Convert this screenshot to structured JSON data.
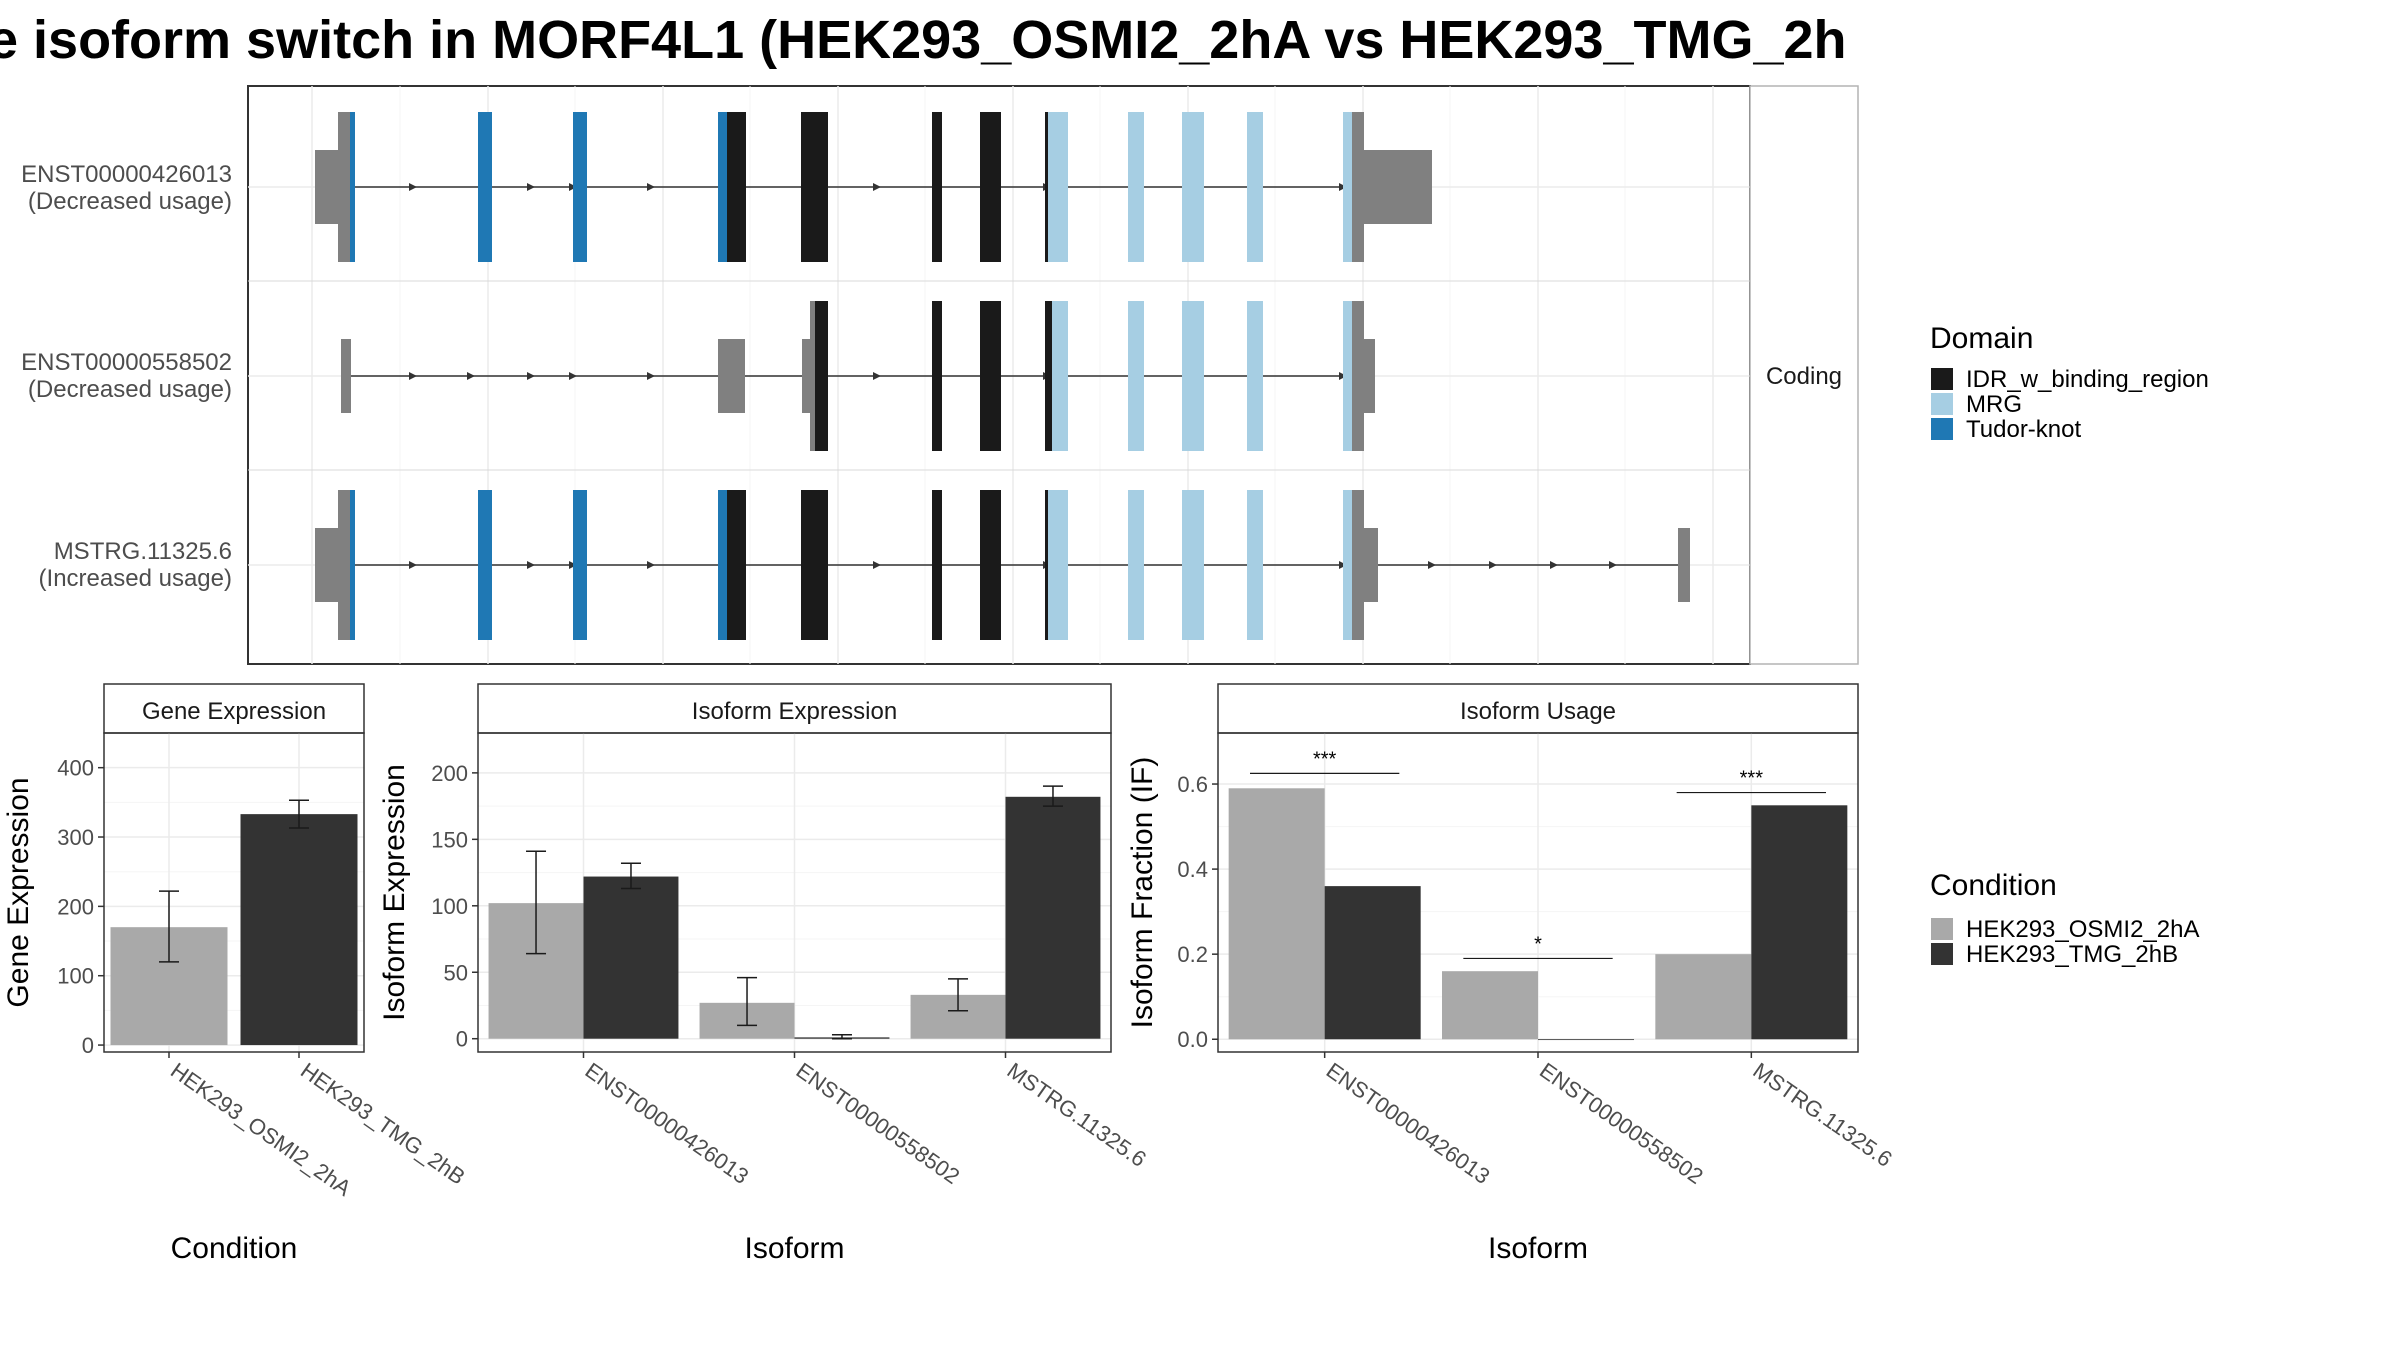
{
  "chart_data": [
    {
      "type": "transcript-structure",
      "title": "e isoform switch in MORF4L1 (HEK293_OSMI2_2hA vs HEK293_TMG_2h",
      "facet_label": "Coding",
      "transcripts": [
        {
          "id": "ENST00000426013",
          "usage": "(Decreased usage)"
        },
        {
          "id": "ENST00000558502",
          "usage": "(Decreased usage)"
        },
        {
          "id": "MSTRG.11325.6",
          "usage": "(Increased usage)"
        }
      ],
      "legend": {
        "title": "Domain",
        "entries": [
          {
            "name": "IDR_w_binding_region",
            "color": "#1a1a1a"
          },
          {
            "name": "MRG",
            "color": "#a6cee3"
          },
          {
            "name": "Tudor-knot",
            "color": "#1f78b4"
          }
        ]
      }
    },
    {
      "type": "bar",
      "strip": "Gene Expression",
      "xlabel": "Condition",
      "ylabel": "Gene Expression",
      "categories": [
        "HEK293_OSMI2_2hA",
        "HEK293_TMG_2hB"
      ],
      "values": [
        170,
        333
      ],
      "errors": [
        [
          120,
          222
        ],
        [
          313,
          353
        ]
      ],
      "ylim": [
        -10,
        450
      ],
      "yticks": [
        0,
        100,
        200,
        300,
        400
      ]
    },
    {
      "type": "bar",
      "strip": "Isoform Expression",
      "xlabel": "Isoform",
      "ylabel": "Isoform Expression",
      "categories": [
        "ENST00000426013",
        "ENST00000558502",
        "MSTRG.11325.6"
      ],
      "series": [
        {
          "name": "HEK293_OSMI2_2hA",
          "values": [
            102,
            27,
            33
          ],
          "errors": [
            [
              64,
              141
            ],
            [
              10,
              46
            ],
            [
              21,
              45
            ]
          ]
        },
        {
          "name": "HEK293_TMG_2hB",
          "values": [
            122,
            1,
            182
          ],
          "errors": [
            [
              113,
              132
            ],
            [
              0,
              3
            ],
            [
              175,
              190
            ]
          ]
        }
      ],
      "ylim": [
        -10,
        230
      ],
      "yticks": [
        0,
        50,
        100,
        150,
        200
      ]
    },
    {
      "type": "bar",
      "strip": "Isoform Usage",
      "xlabel": "Isoform",
      "ylabel": "Isoform Fraction (IF)",
      "categories": [
        "ENST00000426013",
        "ENST00000558502",
        "MSTRG.11325.6"
      ],
      "series": [
        {
          "name": "HEK293_OSMI2_2hA",
          "values": [
            0.59,
            0.16,
            0.2
          ]
        },
        {
          "name": "HEK293_TMG_2hB",
          "values": [
            0.36,
            0.0,
            0.55
          ]
        }
      ],
      "significance": [
        {
          "label": "***",
          "y": 0.625
        },
        {
          "label": "*",
          "y": 0.19
        },
        {
          "label": "***",
          "y": 0.58
        }
      ],
      "ylim": [
        -0.03,
        0.72
      ],
      "yticks": [
        "0.0",
        "0.2",
        "0.4",
        "0.6"
      ]
    }
  ],
  "condition_legend": {
    "title": "Condition",
    "entries": [
      {
        "name": "HEK293_OSMI2_2hA",
        "color": "#a9a9a9"
      },
      {
        "name": "HEK293_TMG_2hB",
        "color": "#333333"
      }
    ]
  }
}
